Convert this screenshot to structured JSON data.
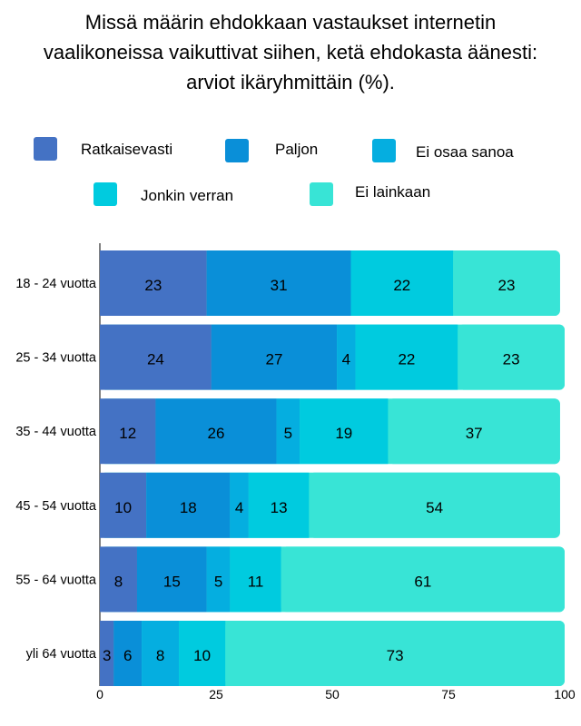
{
  "chart_data": {
    "type": "bar",
    "orientation": "horizontal",
    "stacked": true,
    "title_lines": [
      "Missä määrin ehdokkaan vastaukset internetin",
      "vaalikoneissa vaikuttivat siihen, ketä ehdokasta äänesti:",
      "arviot ikäryhmittäin (%)."
    ],
    "categories": [
      "18 - 24 vuotta",
      "25 - 34 vuotta",
      "35 - 44 vuotta",
      "45 - 54 vuotta",
      "55 - 64 vuotta",
      "yli 64 vuotta"
    ],
    "series": [
      {
        "name": "Ratkaisevasti",
        "color": "#4472C4",
        "values": [
          23,
          24,
          12,
          10,
          8,
          3
        ]
      },
      {
        "name": "Paljon",
        "color": "#0A8FD8",
        "values": [
          31,
          27,
          26,
          18,
          15,
          6
        ]
      },
      {
        "name": "Ei osaa sanoa",
        "color": "#05AEE0",
        "values": [
          0,
          4,
          5,
          4,
          5,
          8
        ]
      },
      {
        "name": "Jonkin verran",
        "color": "#00CBDF",
        "values": [
          22,
          22,
          19,
          13,
          11,
          10
        ]
      },
      {
        "name": "Ei lainkaan",
        "color": "#38E4D6",
        "values": [
          23,
          23,
          37,
          54,
          61,
          73
        ]
      }
    ],
    "xlim": [
      0,
      100
    ],
    "xticks": [
      "0",
      "25",
      "50",
      "75",
      "100"
    ],
    "legend_position": "top",
    "grid": false
  }
}
